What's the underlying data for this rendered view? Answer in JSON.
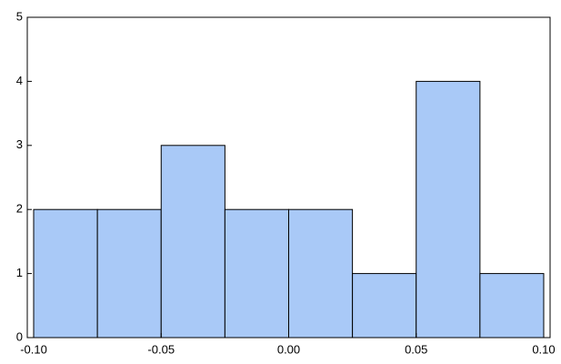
{
  "chart_data": {
    "type": "histogram",
    "bins": [
      -0.1,
      -0.075,
      -0.05,
      -0.025,
      0,
      0.025,
      0.05,
      0.075,
      0.1
    ],
    "values": [
      2,
      2,
      3,
      2,
      2,
      1,
      4,
      1
    ],
    "color": "#a9c9f7",
    "edgecolor": "#000000",
    "xlim": [
      -0.1025,
      0.1025
    ],
    "ylim": [
      0,
      5
    ],
    "xticks": [
      {
        "value": -0.1,
        "label": "-0.10"
      },
      {
        "value": -0.05,
        "label": "-0.05"
      },
      {
        "value": 0,
        "label": "0.00"
      },
      {
        "value": 0.05,
        "label": "0.05"
      },
      {
        "value": 0.1,
        "label": "0.10"
      }
    ],
    "yticks": [
      0,
      1,
      2,
      3,
      4,
      5
    ],
    "grid": false
  }
}
